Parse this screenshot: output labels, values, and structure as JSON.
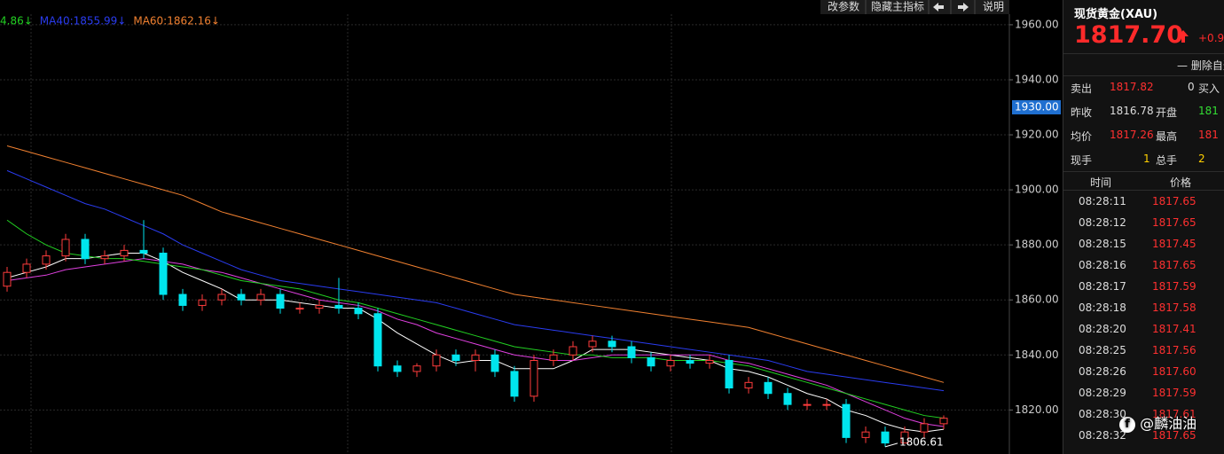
{
  "chart_data": {
    "type": "candlestick",
    "open": [
      1865,
      1870,
      1873,
      1876,
      1882,
      1875,
      1876,
      1878,
      1877,
      1862,
      1858,
      1860,
      1862,
      1860,
      1862,
      1857,
      1857,
      1858,
      1857,
      1855,
      1836,
      1834,
      1836,
      1840,
      1838,
      1840,
      1834,
      1825,
      1838,
      1840,
      1843,
      1845,
      1843,
      1839,
      1836,
      1838,
      1837,
      1838,
      1828,
      1830,
      1826,
      1822,
      1822,
      1822,
      1810,
      1812,
      1808,
      1812,
      1815
    ],
    "high": [
      1872,
      1875,
      1878,
      1884,
      1884,
      1878,
      1880,
      1889,
      1879,
      1864,
      1862,
      1864,
      1864,
      1864,
      1864,
      1859,
      1860,
      1868,
      1859,
      1857,
      1838,
      1837,
      1842,
      1842,
      1842,
      1842,
      1836,
      1840,
      1842,
      1845,
      1847,
      1847,
      1845,
      1841,
      1840,
      1840,
      1840,
      1840,
      1832,
      1832,
      1828,
      1824,
      1824,
      1824,
      1814,
      1814,
      1814,
      1817,
      1818
    ],
    "low": [
      1863,
      1868,
      1871,
      1874,
      1873,
      1873,
      1874,
      1875,
      1860,
      1856,
      1856,
      1858,
      1858,
      1858,
      1855,
      1855,
      1855,
      1855,
      1853,
      1834,
      1832,
      1832,
      1834,
      1836,
      1834,
      1832,
      1823,
      1823,
      1836,
      1838,
      1841,
      1841,
      1837,
      1834,
      1834,
      1835,
      1835,
      1826,
      1826,
      1824,
      1820,
      1820,
      1820,
      1808,
      1808,
      1806.61,
      1808,
      1810,
      1813
    ],
    "close": [
      1870,
      1873,
      1876,
      1882,
      1875,
      1876,
      1878,
      1877,
      1862,
      1858,
      1860,
      1862,
      1860,
      1862,
      1857,
      1857,
      1858,
      1857,
      1855,
      1836,
      1834,
      1836,
      1840,
      1838,
      1840,
      1834,
      1825,
      1838,
      1840,
      1843,
      1845,
      1843,
      1839,
      1836,
      1838,
      1837,
      1838,
      1828,
      1830,
      1826,
      1822,
      1822,
      1822,
      1810,
      1812,
      1808,
      1812,
      1815,
      1817
    ],
    "up_color": "#ff3c3c",
    "down_color": "#00e5ee",
    "ylim": [
      1804,
      1969
    ],
    "yticks": [
      {
        "value": 1820,
        "label": "1820.00"
      },
      {
        "value": 1840,
        "label": "1840.00"
      },
      {
        "value": 1860,
        "label": "1860.00"
      },
      {
        "value": 1880,
        "label": "1880.00"
      },
      {
        "value": 1900,
        "label": "1900.00"
      },
      {
        "value": 1920,
        "label": "1920.00"
      },
      {
        "value": 1940,
        "label": "1940.00"
      },
      {
        "value": 1960,
        "label": "1960.00"
      }
    ],
    "grid": true,
    "price_marker": {
      "value": 1930,
      "label": "1930.00"
    },
    "lines": [
      {
        "color": "#ffffff",
        "values": [
          1868,
          1870,
          1872,
          1875,
          1875,
          1876,
          1877,
          1877,
          1874,
          1870,
          1867,
          1864,
          1860,
          1860,
          1860,
          1859,
          1858,
          1857,
          1857,
          1853,
          1848,
          1844,
          1840,
          1837,
          1838,
          1838,
          1835,
          1835,
          1835,
          1838,
          1842,
          1842,
          1842,
          1841,
          1840,
          1839,
          1838,
          1835,
          1834,
          1832,
          1829,
          1826,
          1824,
          1820,
          1818,
          1815,
          1813,
          1812,
          1813
        ]
      },
      {
        "color": "#e040e0",
        "values": [
          1867,
          1868,
          1869,
          1871,
          1872,
          1873,
          1874,
          1875,
          1874,
          1873,
          1871,
          1870,
          1868,
          1866,
          1864,
          1862,
          1860,
          1859,
          1858,
          1856,
          1853,
          1851,
          1848,
          1846,
          1844,
          1842,
          1840,
          1839,
          1838,
          1838,
          1839,
          1840,
          1840,
          1840,
          1840,
          1840,
          1840,
          1838,
          1837,
          1835,
          1833,
          1831,
          1829,
          1826,
          1823,
          1820,
          1817,
          1815,
          1814
        ]
      },
      {
        "name": "4.86↓",
        "color": "#22d022",
        "values": [
          1889,
          1884,
          1880,
          1877,
          1876,
          1875,
          1875,
          1874,
          1873,
          1872,
          1871,
          1869,
          1867,
          1866,
          1865,
          1864,
          1862,
          1860,
          1859,
          1857,
          1855,
          1853,
          1851,
          1849,
          1847,
          1845,
          1843,
          1842,
          1841,
          1840,
          1840,
          1839,
          1839,
          1839,
          1838,
          1838,
          1838,
          1837,
          1836,
          1834,
          1832,
          1830,
          1828,
          1826,
          1824,
          1822,
          1820,
          1818,
          1817
        ]
      },
      {
        "name": "MA40:1855.99↓",
        "color": "#2a3cf0",
        "values": [
          1907,
          1904,
          1901,
          1898,
          1895,
          1893,
          1890,
          1887,
          1884,
          1880,
          1877,
          1874,
          1871,
          1869,
          1867,
          1866,
          1865,
          1864,
          1863,
          1862,
          1861,
          1860,
          1859,
          1857,
          1855,
          1853,
          1851,
          1850,
          1849,
          1848,
          1847,
          1846,
          1845,
          1844,
          1843,
          1842,
          1841,
          1840,
          1839,
          1838,
          1836,
          1834,
          1833,
          1832,
          1831,
          1830,
          1829,
          1828,
          1827
        ]
      },
      {
        "name": "MA60:1862.16↓",
        "color": "#f08030",
        "values": [
          1916,
          1914,
          1912,
          1910,
          1908,
          1906,
          1904,
          1902,
          1900,
          1898,
          1895,
          1892,
          1890,
          1888,
          1886,
          1884,
          1882,
          1880,
          1878,
          1876,
          1874,
          1872,
          1870,
          1868,
          1866,
          1864,
          1862,
          1861,
          1860,
          1859,
          1858,
          1857,
          1856,
          1855,
          1854,
          1853,
          1852,
          1851,
          1850,
          1848,
          1846,
          1844,
          1842,
          1840,
          1838,
          1836,
          1834,
          1832,
          1830
        ]
      }
    ]
  },
  "toolbar": {
    "buttons": [
      "改参数",
      "隐藏主指标",
      "说明"
    ]
  },
  "quote": {
    "name": "现货黄金(XAU)",
    "price": "1817.70",
    "change": "+0.9",
    "action": "删除自选",
    "rows": [
      [
        "卖出",
        "1817.82",
        "0",
        "买入"
      ],
      [
        "昨收",
        "1816.78",
        "开盘",
        "181"
      ],
      [
        "均价",
        "1817.26",
        "最高",
        "181"
      ],
      [
        "现手",
        "1",
        "总手",
        "2"
      ]
    ]
  },
  "trades": {
    "header": [
      "时间",
      "价格"
    ],
    "rows": [
      [
        "08:28:11",
        "1817.65"
      ],
      [
        "08:28:12",
        "1817.65"
      ],
      [
        "08:28:15",
        "1817.45"
      ],
      [
        "08:28:16",
        "1817.65"
      ],
      [
        "08:28:17",
        "1817.59"
      ],
      [
        "08:28:18",
        "1817.58"
      ],
      [
        "08:28:20",
        "1817.41"
      ],
      [
        "08:28:25",
        "1817.56"
      ],
      [
        "08:28:26",
        "1817.60"
      ],
      [
        "08:28:29",
        "1817.59"
      ],
      [
        "08:28:30",
        "1817.61"
      ],
      [
        "08:28:32",
        "1817.65"
      ]
    ]
  },
  "watermark": "@麟油油"
}
